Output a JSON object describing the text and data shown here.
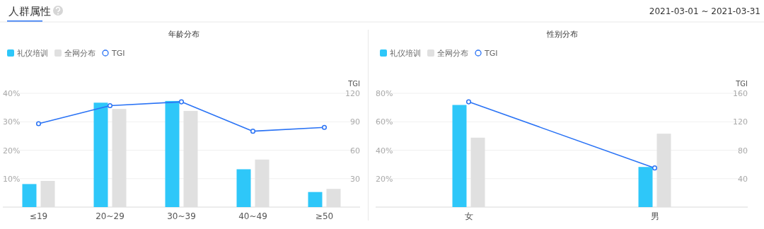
{
  "chart_data": [
    {
      "type": "other",
      "title": "人群属性",
      "annotations": [
        "2021-03-01 ~ 2021-03-31"
      ]
    },
    {
      "type": "bar",
      "title": "年龄分布",
      "y2label": "TGI",
      "categories": [
        "≤19",
        "20~29",
        "30~39",
        "40~49",
        "≥50"
      ],
      "series": [
        {
          "name": "礼仪培训",
          "type": "bar",
          "color": "#2ec7f9",
          "values": [
            8.1,
            36.7,
            37.3,
            13.3,
            5.3
          ]
        },
        {
          "name": "全网分布",
          "type": "bar",
          "color": "#e0e0e0",
          "values": [
            9.2,
            34.5,
            33.8,
            16.7,
            6.4
          ]
        },
        {
          "name": "TGI",
          "type": "line",
          "axis": "y2",
          "color": "#2a73f5",
          "marker": "circle",
          "values": [
            88,
            107,
            111,
            80,
            84
          ]
        }
      ],
      "ylim": [
        0,
        40
      ],
      "yticks": [
        {
          "value": 10,
          "label": "10%"
        },
        {
          "value": 20,
          "label": "20%"
        },
        {
          "value": 30,
          "label": "30%"
        },
        {
          "value": 40,
          "label": "40%"
        }
      ],
      "y2lim": [
        0,
        120
      ],
      "y2ticks": [
        30,
        60,
        90,
        120
      ],
      "grid": "y",
      "legend": "top left"
    },
    {
      "type": "bar",
      "title": "性别分布",
      "y2label": "TGI",
      "categories": [
        "女",
        "男"
      ],
      "series": [
        {
          "name": "礼仪培训",
          "type": "bar",
          "color": "#2ec7f9",
          "values": [
            71.8,
            28.2
          ]
        },
        {
          "name": "全网分布",
          "type": "bar",
          "color": "#e0e0e0",
          "values": [
            48.8,
            51.6
          ]
        },
        {
          "name": "TGI",
          "type": "line",
          "axis": "y2",
          "color": "#2a73f5",
          "marker": "circle",
          "values": [
            148,
            55
          ]
        }
      ],
      "ylim": [
        0,
        80
      ],
      "yticks": [
        {
          "value": 20,
          "label": "20%"
        },
        {
          "value": 40,
          "label": "40%"
        },
        {
          "value": 60,
          "label": "60%"
        },
        {
          "value": 80,
          "label": "80%"
        }
      ],
      "y2lim": [
        0,
        160
      ],
      "y2ticks": [
        40,
        80,
        120,
        160
      ],
      "grid": "y",
      "legend": "top left"
    }
  ]
}
